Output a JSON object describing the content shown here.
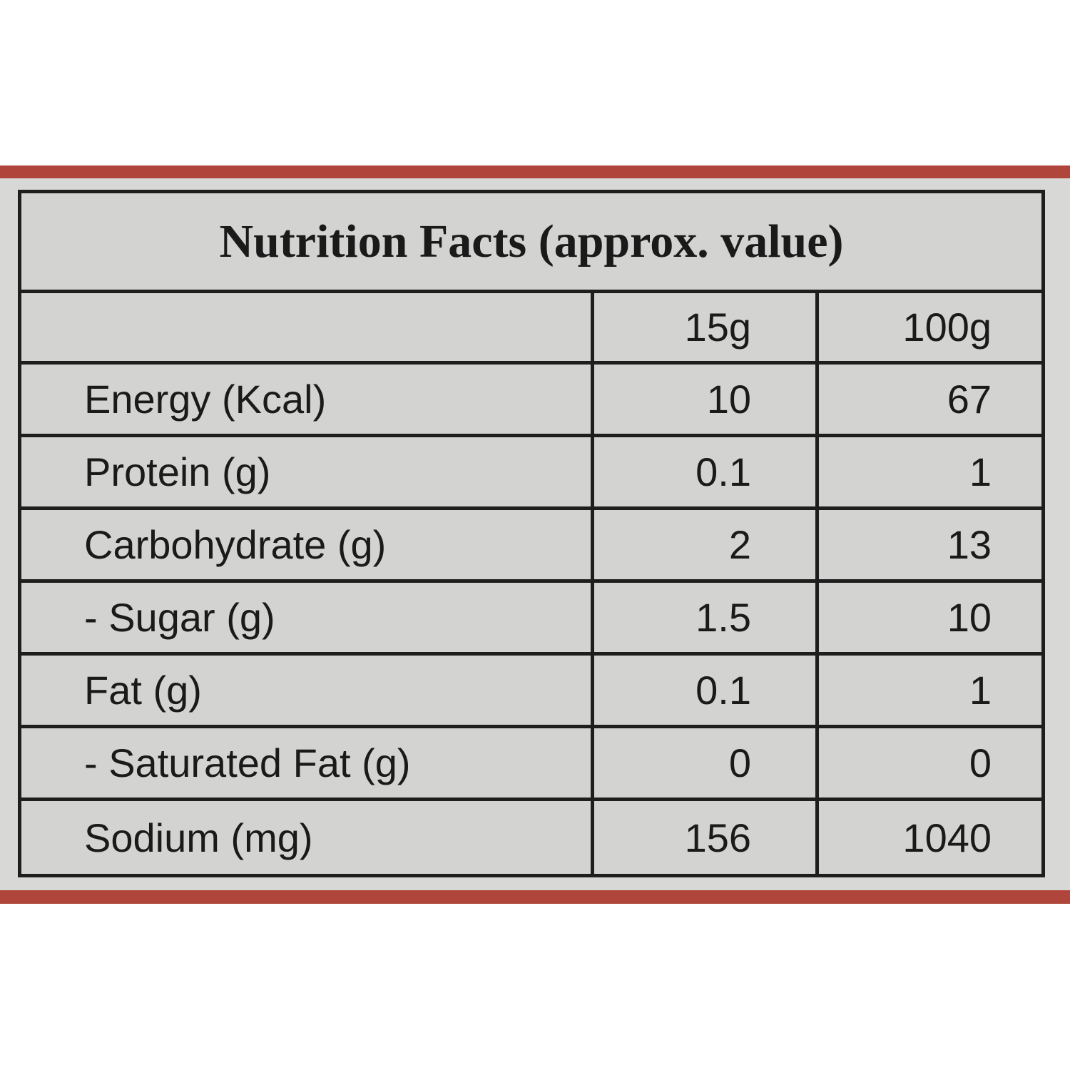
{
  "table": {
    "title": "Nutrition Facts (approx. value)",
    "columns": [
      "15g",
      "100g"
    ],
    "rows": [
      [
        "Energy (Kcal)",
        "10",
        "67"
      ],
      [
        "Protein (g)",
        "0.1",
        "1"
      ],
      [
        "Carbohydrate (g)",
        "2",
        "13"
      ],
      [
        "- Sugar (g)",
        "1.5",
        "10"
      ],
      [
        "Fat (g)",
        "0.1",
        "1"
      ],
      [
        "- Saturated Fat (g)",
        "0",
        "0"
      ],
      [
        "Sodium (mg)",
        "156",
        "1040"
      ]
    ]
  }
}
